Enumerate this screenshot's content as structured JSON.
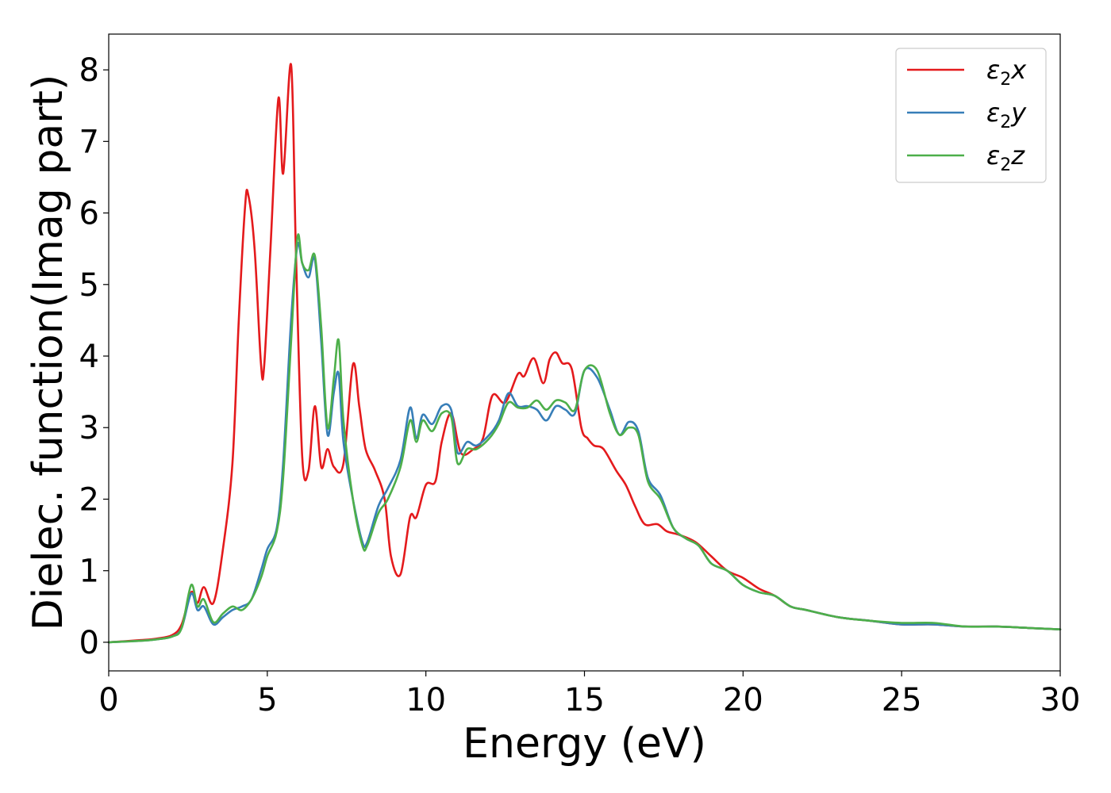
{
  "chart_data": {
    "type": "line",
    "title": "",
    "xlabel": "Energy (eV)",
    "ylabel": "Dielec. function(Imag part)",
    "xlim": [
      0,
      30
    ],
    "ylim": [
      -0.4,
      8.5
    ],
    "xticks": [
      0,
      5,
      10,
      15,
      20,
      25,
      30
    ],
    "yticks": [
      0,
      1,
      2,
      3,
      4,
      5,
      6,
      7,
      8
    ],
    "grid": false,
    "legend_position": "top-right",
    "series": [
      {
        "name": "ε2x",
        "legend_base": "ε",
        "legend_sub": "2",
        "legend_suffix": "x",
        "color": "#e41a1c",
        "x": [
          0,
          1,
          1.5,
          2,
          2.3,
          2.6,
          2.8,
          3.0,
          3.3,
          3.6,
          3.9,
          4.1,
          4.3,
          4.4,
          4.6,
          4.8,
          4.9,
          5.1,
          5.35,
          5.5,
          5.75,
          5.9,
          6.1,
          6.3,
          6.5,
          6.7,
          6.9,
          7.1,
          7.4,
          7.7,
          7.9,
          8.1,
          8.4,
          8.7,
          8.9,
          9.2,
          9.5,
          9.7,
          10.0,
          10.3,
          10.5,
          10.8,
          11.1,
          11.5,
          11.8,
          12.1,
          12.5,
          12.9,
          13.1,
          13.4,
          13.7,
          13.9,
          14.1,
          14.3,
          14.6,
          14.9,
          15.1,
          15.3,
          15.6,
          16.0,
          16.3,
          16.6,
          16.9,
          17.3,
          17.6,
          18.0,
          18.5,
          19.0,
          19.5,
          20.0,
          20.5,
          21.0,
          21.5,
          22.0,
          23.0,
          24.0,
          25.0,
          26.0,
          27.0,
          28.0,
          29.0,
          30.0
        ],
        "y": [
          0,
          0.03,
          0.05,
          0.1,
          0.25,
          0.7,
          0.55,
          0.77,
          0.55,
          1.3,
          2.5,
          4.5,
          6.1,
          6.25,
          5.5,
          3.9,
          3.85,
          5.5,
          7.6,
          6.55,
          8.07,
          5.5,
          2.6,
          2.4,
          3.3,
          2.45,
          2.7,
          2.45,
          2.5,
          3.88,
          3.3,
          2.7,
          2.4,
          2.0,
          1.2,
          0.95,
          1.75,
          1.75,
          2.2,
          2.25,
          2.8,
          3.2,
          2.65,
          2.7,
          2.85,
          3.45,
          3.35,
          3.75,
          3.72,
          3.97,
          3.62,
          3.95,
          4.05,
          3.9,
          3.82,
          3.0,
          2.85,
          2.75,
          2.7,
          2.4,
          2.2,
          1.9,
          1.65,
          1.65,
          1.55,
          1.5,
          1.4,
          1.2,
          1.0,
          0.9,
          0.75,
          0.65,
          0.5,
          0.45,
          0.35,
          0.3,
          0.25,
          0.25,
          0.22,
          0.22,
          0.2,
          0.18
        ]
      },
      {
        "name": "ε2y",
        "legend_base": "ε",
        "legend_sub": "2",
        "legend_suffix": "y",
        "color": "#377eb8",
        "x": [
          0,
          1,
          1.5,
          2,
          2.3,
          2.6,
          2.8,
          3.0,
          3.3,
          3.6,
          3.9,
          4.2,
          4.5,
          4.8,
          5.0,
          5.3,
          5.5,
          5.75,
          5.95,
          6.1,
          6.3,
          6.5,
          6.7,
          6.9,
          7.1,
          7.25,
          7.4,
          7.7,
          8.0,
          8.15,
          8.5,
          8.8,
          9.2,
          9.5,
          9.7,
          9.9,
          10.2,
          10.5,
          10.8,
          11.0,
          11.3,
          11.6,
          12.0,
          12.3,
          12.6,
          12.9,
          13.2,
          13.5,
          13.8,
          14.1,
          14.4,
          14.7,
          15.0,
          15.4,
          15.8,
          16.1,
          16.4,
          16.7,
          17.0,
          17.4,
          17.8,
          18.2,
          18.6,
          19.0,
          19.5,
          20.0,
          20.5,
          21.0,
          21.5,
          22.0,
          23.0,
          24.0,
          25.0,
          26.0,
          27.0,
          28.0,
          29.0,
          30.0
        ],
        "y": [
          0,
          0.02,
          0.04,
          0.08,
          0.2,
          0.68,
          0.45,
          0.5,
          0.25,
          0.35,
          0.45,
          0.5,
          0.6,
          1.0,
          1.3,
          1.6,
          2.5,
          4.5,
          5.55,
          5.3,
          5.1,
          5.35,
          4.2,
          2.9,
          3.5,
          3.75,
          2.8,
          2.0,
          1.4,
          1.4,
          1.9,
          2.15,
          2.55,
          3.28,
          2.85,
          3.18,
          3.05,
          3.3,
          3.25,
          2.65,
          2.8,
          2.75,
          2.9,
          3.1,
          3.48,
          3.3,
          3.3,
          3.25,
          3.1,
          3.3,
          3.25,
          3.2,
          3.8,
          3.7,
          3.25,
          2.9,
          3.08,
          2.95,
          2.3,
          2.05,
          1.6,
          1.45,
          1.35,
          1.1,
          1.0,
          0.8,
          0.7,
          0.65,
          0.5,
          0.45,
          0.35,
          0.3,
          0.25,
          0.25,
          0.22,
          0.22,
          0.2,
          0.18
        ]
      },
      {
        "name": "ε2z",
        "legend_base": "ε",
        "legend_sub": "2",
        "legend_suffix": "z",
        "color": "#4daf4a",
        "x": [
          0,
          1,
          1.5,
          2,
          2.3,
          2.6,
          2.8,
          3.0,
          3.3,
          3.6,
          3.9,
          4.2,
          4.5,
          4.8,
          5.0,
          5.3,
          5.5,
          5.75,
          5.95,
          6.1,
          6.3,
          6.5,
          6.7,
          6.9,
          7.1,
          7.25,
          7.4,
          7.7,
          8.0,
          8.15,
          8.5,
          8.8,
          9.2,
          9.5,
          9.7,
          9.9,
          10.2,
          10.5,
          10.8,
          11.0,
          11.3,
          11.6,
          12.0,
          12.3,
          12.6,
          12.9,
          13.2,
          13.5,
          13.8,
          14.1,
          14.4,
          14.7,
          15.0,
          15.4,
          15.8,
          16.1,
          16.4,
          16.7,
          17.0,
          17.4,
          17.8,
          18.2,
          18.6,
          19.0,
          19.5,
          20.0,
          20.5,
          21.0,
          21.5,
          22.0,
          23.0,
          24.0,
          25.0,
          26.0,
          27.0,
          28.0,
          29.0,
          30.0
        ],
        "y": [
          0,
          0.02,
          0.04,
          0.08,
          0.2,
          0.8,
          0.5,
          0.6,
          0.28,
          0.4,
          0.5,
          0.45,
          0.6,
          0.9,
          1.2,
          1.55,
          2.3,
          4.2,
          5.66,
          5.3,
          5.2,
          5.4,
          4.4,
          3.0,
          3.7,
          4.22,
          3.1,
          2.0,
          1.35,
          1.35,
          1.8,
          2.0,
          2.45,
          3.1,
          2.8,
          3.1,
          2.95,
          3.2,
          3.15,
          2.5,
          2.7,
          2.7,
          2.85,
          3.05,
          3.35,
          3.28,
          3.28,
          3.38,
          3.25,
          3.38,
          3.35,
          3.25,
          3.8,
          3.8,
          3.2,
          2.9,
          3.0,
          2.9,
          2.25,
          2.0,
          1.6,
          1.45,
          1.35,
          1.1,
          1.0,
          0.8,
          0.7,
          0.65,
          0.5,
          0.45,
          0.35,
          0.3,
          0.27,
          0.27,
          0.22,
          0.22,
          0.2,
          0.18
        ]
      }
    ]
  }
}
